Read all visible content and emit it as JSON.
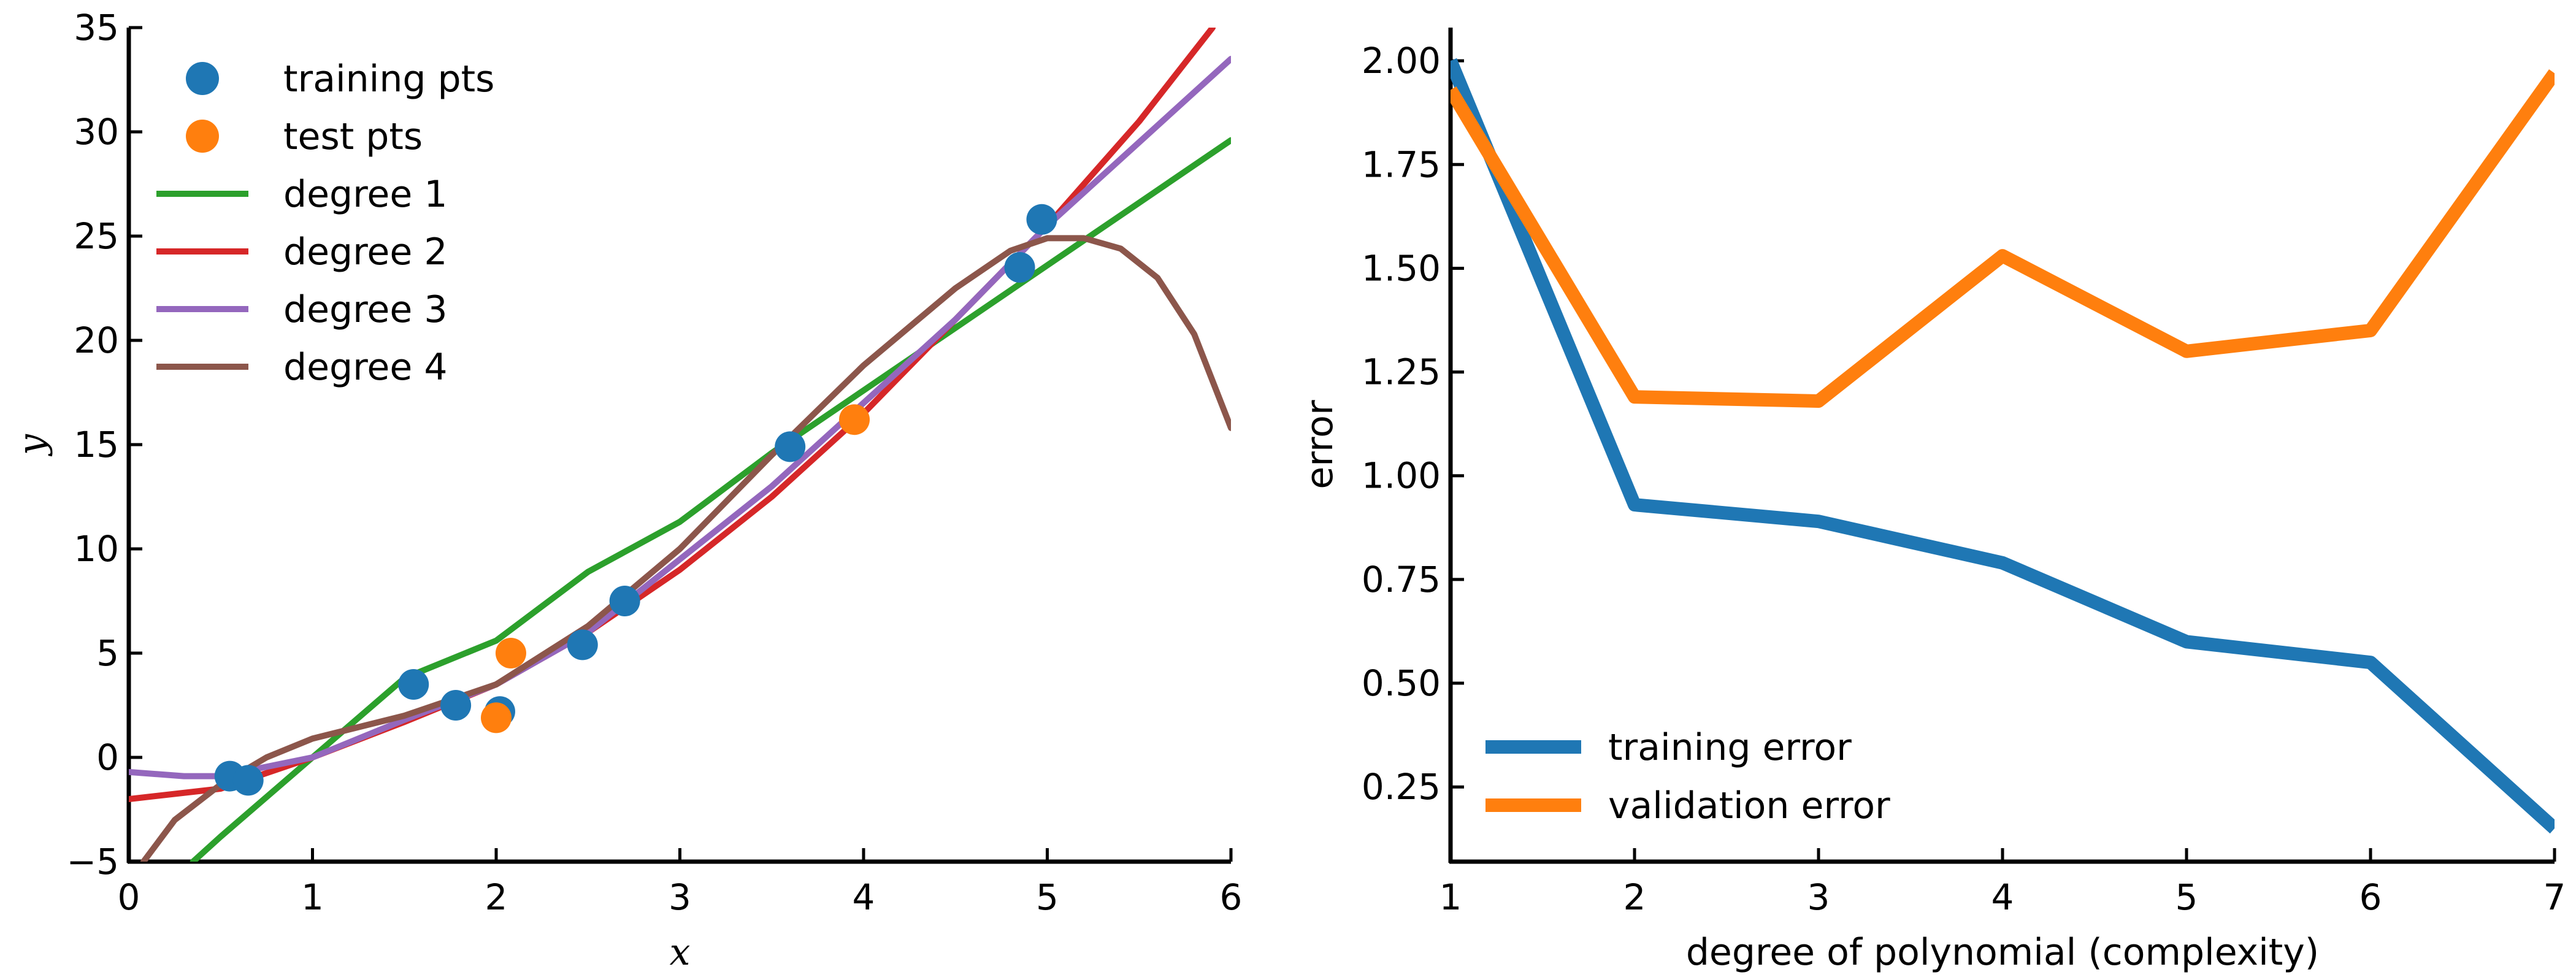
{
  "chart_data": [
    {
      "type": "scatter+line",
      "xlabel": "x",
      "ylabel": "y",
      "xlim": [
        0,
        6
      ],
      "ylim": [
        -5,
        35
      ],
      "xticks": [
        0,
        1,
        2,
        3,
        4,
        5,
        6
      ],
      "yticks": [
        -5,
        0,
        5,
        10,
        15,
        20,
        25,
        30,
        35
      ],
      "legend_position": "top-left",
      "grid": false,
      "scatter_series": [
        {
          "name": "training pts",
          "color": "#1f77b4",
          "points": [
            [
              0.55,
              -0.9
            ],
            [
              0.65,
              -1.1
            ],
            [
              1.55,
              3.5
            ],
            [
              1.78,
              2.5
            ],
            [
              2.02,
              2.2
            ],
            [
              2.47,
              5.4
            ],
            [
              2.7,
              7.5
            ],
            [
              3.6,
              14.9
            ],
            [
              4.85,
              23.5
            ],
            [
              4.97,
              25.8
            ]
          ]
        },
        {
          "name": "test pts",
          "color": "#ff7f0e",
          "points": [
            [
              2.0,
              1.9
            ],
            [
              2.08,
              5.0
            ],
            [
              3.95,
              16.2
            ]
          ]
        }
      ],
      "line_series": [
        {
          "name": "degree 1",
          "color": "#2ca02c",
          "points": [
            [
              0.35,
              -5.0
            ],
            [
              0.5,
              -3.8
            ],
            [
              1.0,
              0.0
            ],
            [
              1.5,
              3.8
            ],
            [
              2.0,
              5.6
            ],
            [
              2.5,
              8.9
            ],
            [
              3.0,
              11.3
            ],
            [
              3.5,
              14.6
            ],
            [
              4.0,
              17.6
            ],
            [
              4.5,
              20.6
            ],
            [
              5.0,
              23.6
            ],
            [
              5.5,
              26.6
            ],
            [
              6.0,
              29.6
            ]
          ]
        },
        {
          "name": "degree 2",
          "color": "#d62728",
          "points": [
            [
              0.0,
              -2.0
            ],
            [
              0.5,
              -1.5
            ],
            [
              1.0,
              0.0
            ],
            [
              1.5,
              1.7
            ],
            [
              2.0,
              3.5
            ],
            [
              2.5,
              6.0
            ],
            [
              3.0,
              9.0
            ],
            [
              3.5,
              12.5
            ],
            [
              4.0,
              16.5
            ],
            [
              4.5,
              21.0
            ],
            [
              5.0,
              25.5
            ],
            [
              5.5,
              30.5
            ],
            [
              5.9,
              35.0
            ]
          ]
        },
        {
          "name": "degree 3",
          "color": "#9467bd",
          "points": [
            [
              0.0,
              -0.7
            ],
            [
              0.3,
              -0.9
            ],
            [
              0.5,
              -0.9
            ],
            [
              1.0,
              0.0
            ],
            [
              1.5,
              1.8
            ],
            [
              2.0,
              3.5
            ],
            [
              2.5,
              6.0
            ],
            [
              3.0,
              9.5
            ],
            [
              3.5,
              13.0
            ],
            [
              4.0,
              17.0
            ],
            [
              4.5,
              21.0
            ],
            [
              5.0,
              25.5
            ],
            [
              5.5,
              29.5
            ],
            [
              6.0,
              33.5
            ]
          ]
        },
        {
          "name": "degree 4",
          "color": "#8c564b",
          "points": [
            [
              0.08,
              -5.0
            ],
            [
              0.25,
              -3.0
            ],
            [
              0.5,
              -1.3
            ],
            [
              0.75,
              0.0
            ],
            [
              1.0,
              0.9
            ],
            [
              1.5,
              2.0
            ],
            [
              2.0,
              3.5
            ],
            [
              2.5,
              6.3
            ],
            [
              3.0,
              10.0
            ],
            [
              3.5,
              14.5
            ],
            [
              4.0,
              18.8
            ],
            [
              4.5,
              22.5
            ],
            [
              4.8,
              24.3
            ],
            [
              5.0,
              24.9
            ],
            [
              5.2,
              24.9
            ],
            [
              5.4,
              24.4
            ],
            [
              5.6,
              23.0
            ],
            [
              5.8,
              20.3
            ],
            [
              6.0,
              15.8
            ]
          ]
        }
      ]
    },
    {
      "type": "line",
      "xlabel": "degree of polynomial (complexity)",
      "ylabel": "error",
      "xlim": [
        1,
        7
      ],
      "ylim": [
        0.07,
        2.08
      ],
      "xticks": [
        1,
        2,
        3,
        4,
        5,
        6,
        7
      ],
      "yticks": [
        0.25,
        0.5,
        0.75,
        1.0,
        1.25,
        1.5,
        1.75,
        2.0
      ],
      "yticklabels": [
        "0.25",
        "0.50",
        "0.75",
        "1.00",
        "1.25",
        "1.50",
        "1.75",
        "2.00"
      ],
      "legend_position": "bottom-left",
      "grid": false,
      "x": [
        1,
        2,
        3,
        4,
        5,
        6,
        7
      ],
      "series": [
        {
          "name": "training error",
          "color": "#1f77b4",
          "values": [
            2.0,
            0.93,
            0.89,
            0.79,
            0.6,
            0.55,
            0.15
          ]
        },
        {
          "name": "validation error",
          "color": "#ff7f0e",
          "values": [
            1.93,
            1.19,
            1.18,
            1.53,
            1.3,
            1.35,
            1.97
          ]
        }
      ]
    }
  ]
}
